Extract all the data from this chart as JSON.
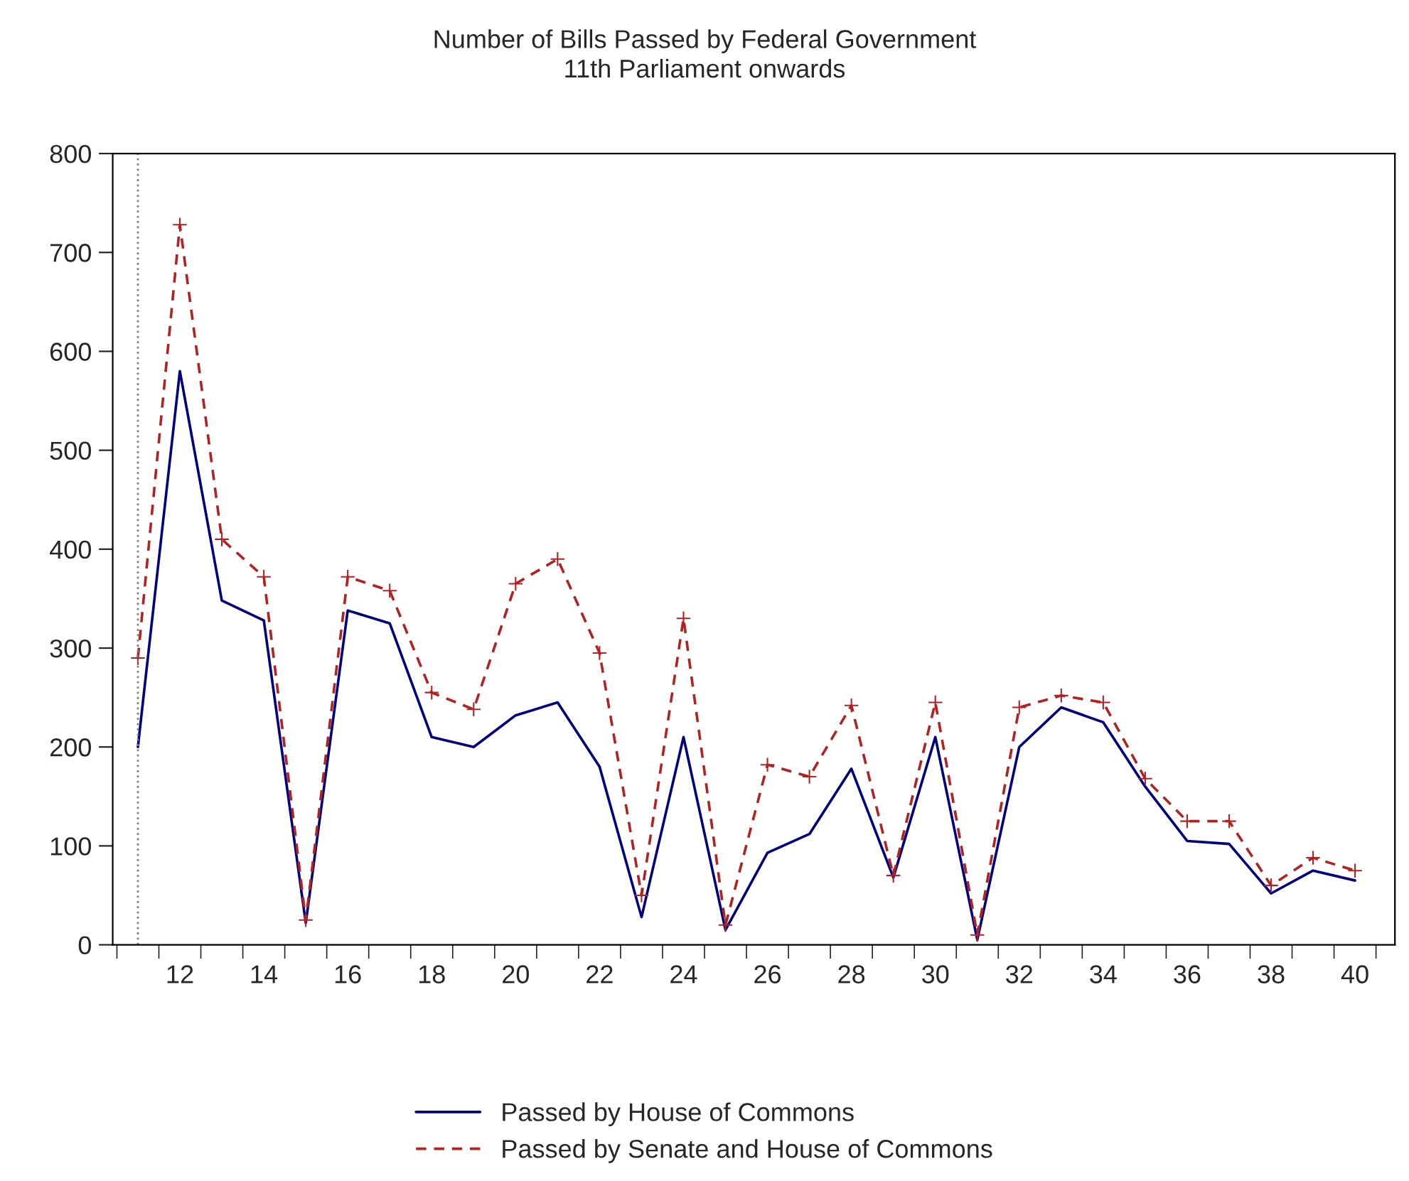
{
  "chart_data": {
    "type": "line",
    "title": "Number of Bills Passed by Federal Government",
    "subtitle": "11th Parliament onwards",
    "x": [
      11,
      12,
      13,
      14,
      15,
      16,
      17,
      18,
      19,
      20,
      21,
      22,
      23,
      24,
      25,
      26,
      27,
      28,
      29,
      30,
      31,
      32,
      33,
      34,
      35,
      36,
      37,
      38,
      39,
      40
    ],
    "series": [
      {
        "name": "Passed by House of Commons",
        "color": "#000080",
        "line_style": "solid",
        "marker": "none",
        "values": [
          200,
          580,
          348,
          328,
          22,
          338,
          325,
          210,
          200,
          232,
          245,
          180,
          28,
          210,
          15,
          93,
          112,
          178,
          68,
          210,
          5,
          200,
          240,
          225,
          160,
          105,
          102,
          52,
          75,
          65
        ]
      },
      {
        "name": "Passed by Senate and House of Commons",
        "color": "#b22222",
        "line_style": "dashed",
        "marker": "cross",
        "values": [
          290,
          728,
          410,
          372,
          25,
          372,
          358,
          255,
          238,
          365,
          390,
          295,
          50,
          330,
          20,
          182,
          170,
          242,
          70,
          245,
          10,
          240,
          252,
          245,
          168,
          125,
          125,
          60,
          88,
          75
        ]
      }
    ],
    "xlim": [
      10.4,
      40.95
    ],
    "ylim": [
      0,
      800
    ],
    "xticks": [
      12,
      14,
      16,
      18,
      20,
      22,
      24,
      26,
      28,
      30,
      32,
      34,
      36,
      38,
      40,
      {
        "value": 10.5,
        "label": null
      },
      {
        "value": 11.5,
        "label": null
      },
      {
        "value": 12.5,
        "label": null
      },
      {
        "value": 13.5,
        "label": null
      },
      {
        "value": 14.5,
        "label": null
      },
      {
        "value": 15.5,
        "label": null
      },
      {
        "value": 16.5,
        "label": null
      },
      {
        "value": 17.5,
        "label": null
      },
      {
        "value": 18.5,
        "label": null
      },
      {
        "value": 19.5,
        "label": null
      },
      {
        "value": 20.5,
        "label": null
      },
      {
        "value": 21.5,
        "label": null
      },
      {
        "value": 22.5,
        "label": null
      },
      {
        "value": 23.5,
        "label": null
      },
      {
        "value": 24.5,
        "label": null
      },
      {
        "value": 25.5,
        "label": null
      },
      {
        "value": 26.5,
        "label": null
      },
      {
        "value": 27.5,
        "label": null
      },
      {
        "value": 28.5,
        "label": null
      },
      {
        "value": 29.5,
        "label": null
      },
      {
        "value": 30.5,
        "label": null
      },
      {
        "value": 31.5,
        "label": null
      },
      {
        "value": 32.5,
        "label": null
      },
      {
        "value": 33.5,
        "label": null
      },
      {
        "value": 34.5,
        "label": null
      },
      {
        "value": 35.5,
        "label": null
      },
      {
        "value": 36.5,
        "label": null
      },
      {
        "value": 37.5,
        "label": null
      },
      {
        "value": 38.5,
        "label": null
      },
      {
        "value": 39.5,
        "label": null
      },
      {
        "value": 40.5,
        "label": null
      }
    ],
    "yticks": [
      0,
      100,
      200,
      300,
      400,
      500,
      600,
      700,
      800
    ],
    "ref_lines": [
      {
        "axis": "x",
        "value": 11,
        "label": null,
        "color": "#808080",
        "line_style": "dotted"
      }
    ],
    "grid": false,
    "legend": "bottom"
  }
}
